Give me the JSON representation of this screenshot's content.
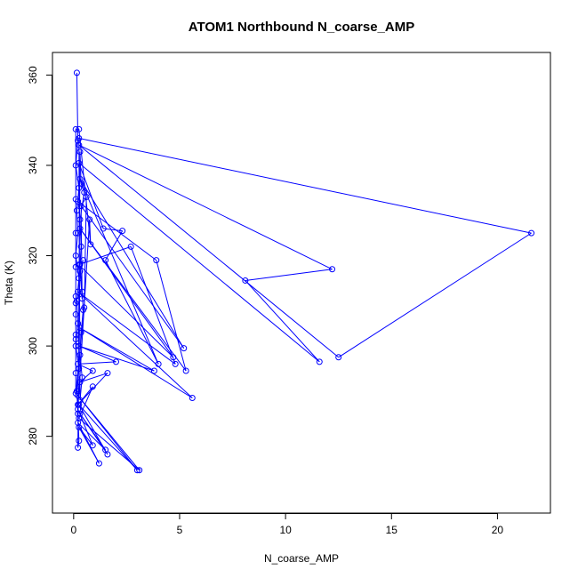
{
  "chart_data": {
    "type": "scatter",
    "title": "ATOM1 Northbound N_coarse_AMP",
    "xlabel": "N_coarse_AMP",
    "ylabel": "Theta (K)",
    "xlim": [
      -1.0,
      22.5
    ],
    "ylim": [
      263.0,
      365.0
    ],
    "x_ticks": [
      0,
      5,
      10,
      15,
      20
    ],
    "y_ticks": [
      280,
      300,
      320,
      340,
      360
    ],
    "grid": false,
    "legend": "none",
    "color": "#0000ff",
    "series": [
      {
        "style": "lines+points",
        "points": [
          [
            0.15,
            360.5
          ],
          [
            0.2,
            345.5
          ],
          [
            0.1,
            340.0
          ],
          [
            0.25,
            335.0
          ],
          [
            0.15,
            330.0
          ],
          [
            0.2,
            325.0
          ],
          [
            0.1,
            320.0
          ],
          [
            0.25,
            315.0
          ],
          [
            0.15,
            310.0
          ],
          [
            0.2,
            305.0
          ],
          [
            0.1,
            300.0
          ],
          [
            0.25,
            295.0
          ],
          [
            0.15,
            290.0
          ],
          [
            0.2,
            285.0
          ],
          [
            0.25,
            279.0
          ],
          [
            0.2,
            277.5
          ],
          [
            0.3,
            343.0
          ],
          [
            0.35,
            336.0
          ],
          [
            0.5,
            334.0
          ],
          [
            0.3,
            328.0
          ],
          [
            0.35,
            322.0
          ],
          [
            0.3,
            318.0
          ],
          [
            0.4,
            312.0
          ],
          [
            0.45,
            308.0
          ],
          [
            0.35,
            303.0
          ],
          [
            0.3,
            298.0
          ],
          [
            0.4,
            293.0
          ],
          [
            0.3,
            288.0
          ],
          [
            0.25,
            346.0
          ],
          [
            21.6,
            325.0
          ],
          [
            12.5,
            297.5
          ],
          [
            0.25,
            344.5
          ],
          [
            12.2,
            317.0
          ],
          [
            8.1,
            314.5
          ],
          [
            11.6,
            296.5
          ],
          [
            0.25,
            340.5
          ],
          [
            1.4,
            326.0
          ],
          [
            2.3,
            325.5
          ],
          [
            1.5,
            319.0
          ],
          [
            4.0,
            296.0
          ],
          [
            0.3,
            337.0
          ],
          [
            5.2,
            299.5
          ],
          [
            0.2,
            332.0
          ],
          [
            3.9,
            319.0
          ],
          [
            5.3,
            294.5
          ],
          [
            0.3,
            326.0
          ],
          [
            4.7,
            297.5
          ],
          [
            0.25,
            318.0
          ],
          [
            2.7,
            322.0
          ],
          [
            4.8,
            296.0
          ],
          [
            0.2,
            312.0
          ],
          [
            5.6,
            288.5
          ],
          [
            0.3,
            304.0
          ],
          [
            3.8,
            294.5
          ],
          [
            0.25,
            300.0
          ],
          [
            2.0,
            296.5
          ],
          [
            0.2,
            296.0
          ],
          [
            0.9,
            294.5
          ],
          [
            0.3,
            292.0
          ],
          [
            1.6,
            294.0
          ],
          [
            0.2,
            287.0
          ],
          [
            0.9,
            291.0
          ],
          [
            0.25,
            284.0
          ],
          [
            3.1,
            272.5
          ],
          [
            0.2,
            289.0
          ],
          [
            3.0,
            272.5
          ],
          [
            0.25,
            287.0
          ],
          [
            1.6,
            276.0
          ],
          [
            0.3,
            285.0
          ],
          [
            1.5,
            277.0
          ],
          [
            0.2,
            283.0
          ],
          [
            1.2,
            274.0
          ],
          [
            0.25,
            282.0
          ],
          [
            0.9,
            278.0
          ],
          [
            0.2,
            286.0
          ],
          [
            0.75,
            328.0
          ],
          [
            0.8,
            322.5
          ],
          [
            0.25,
            348.0
          ],
          [
            0.1,
            348.0
          ],
          [
            0.1,
            332.5
          ],
          [
            0.1,
            325.0
          ],
          [
            0.1,
            317.5
          ],
          [
            0.1,
            311.0
          ],
          [
            0.1,
            309.5
          ],
          [
            0.1,
            307.0
          ],
          [
            0.1,
            302.5
          ],
          [
            0.1,
            301.5
          ],
          [
            0.1,
            294.0
          ],
          [
            0.1,
            289.5
          ],
          [
            0.5,
            308.5
          ],
          [
            0.6,
            333.0
          ],
          [
            0.35,
            331.0
          ],
          [
            0.4,
            310.5
          ],
          [
            0.3,
            316.5
          ],
          [
            0.45,
            319.0
          ]
        ]
      }
    ]
  }
}
